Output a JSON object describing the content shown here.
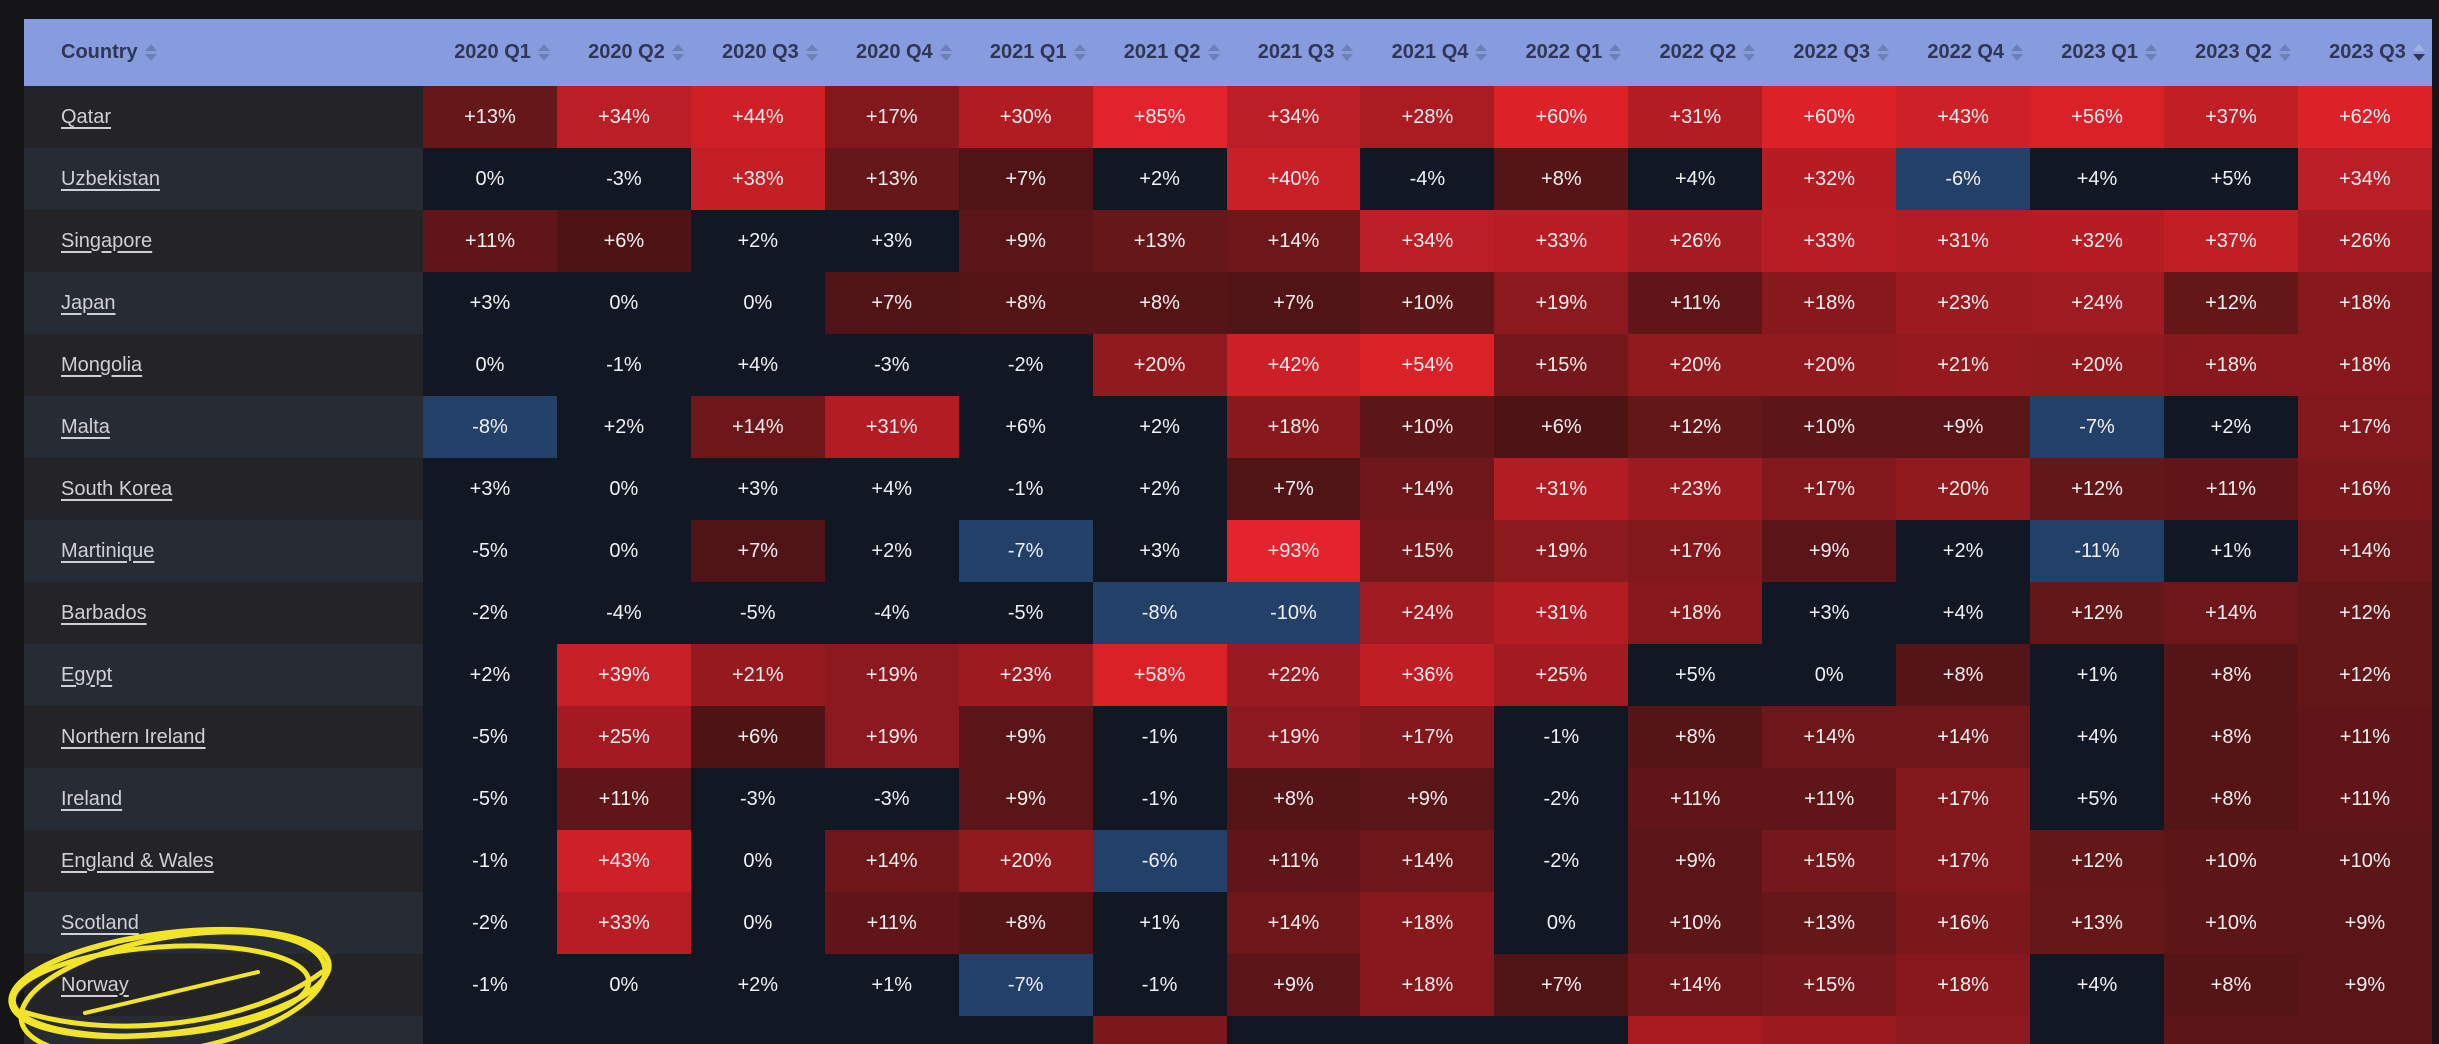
{
  "table": {
    "header": {
      "country_label": "Country",
      "quarters": [
        "2020 Q1",
        "2020 Q2",
        "2020 Q3",
        "2020 Q4",
        "2021 Q1",
        "2021 Q2",
        "2021 Q3",
        "2021 Q4",
        "2022 Q1",
        "2022 Q2",
        "2022 Q3",
        "2022 Q4",
        "2023 Q1",
        "2023 Q2",
        "2023 Q3"
      ]
    },
    "sorted_column": "2023 Q3",
    "sort_direction": "descending",
    "rows": [
      {
        "country": "Qatar",
        "values": [
          13,
          34,
          44,
          17,
          30,
          85,
          34,
          28,
          60,
          31,
          60,
          43,
          56,
          37,
          62
        ]
      },
      {
        "country": "Uzbekistan",
        "values": [
          0,
          -3,
          38,
          13,
          7,
          2,
          40,
          -4,
          8,
          4,
          32,
          -6,
          4,
          5,
          34
        ]
      },
      {
        "country": "Singapore",
        "values": [
          11,
          6,
          2,
          3,
          9,
          13,
          14,
          34,
          33,
          26,
          33,
          31,
          32,
          37,
          26
        ]
      },
      {
        "country": "Japan",
        "values": [
          3,
          0,
          0,
          7,
          8,
          8,
          7,
          10,
          19,
          11,
          18,
          23,
          24,
          12,
          18
        ]
      },
      {
        "country": "Mongolia",
        "values": [
          0,
          -1,
          4,
          -3,
          -2,
          20,
          42,
          54,
          15,
          20,
          20,
          21,
          20,
          18,
          18
        ]
      },
      {
        "country": "Malta",
        "values": [
          -8,
          2,
          14,
          31,
          6,
          2,
          18,
          10,
          6,
          12,
          10,
          9,
          -7,
          2,
          17
        ]
      },
      {
        "country": "South Korea",
        "values": [
          3,
          0,
          3,
          4,
          -1,
          2,
          7,
          14,
          31,
          23,
          17,
          20,
          12,
          11,
          16
        ]
      },
      {
        "country": "Martinique",
        "values": [
          -5,
          0,
          7,
          2,
          -7,
          3,
          93,
          15,
          19,
          17,
          9,
          2,
          -11,
          1,
          14
        ]
      },
      {
        "country": "Barbados",
        "values": [
          -2,
          -4,
          -5,
          -4,
          -5,
          -8,
          -10,
          24,
          31,
          18,
          3,
          4,
          12,
          14,
          12
        ]
      },
      {
        "country": "Egypt",
        "values": [
          2,
          39,
          21,
          19,
          23,
          58,
          22,
          36,
          25,
          5,
          0,
          8,
          1,
          8,
          12
        ]
      },
      {
        "country": "Northern Ireland",
        "values": [
          -5,
          25,
          6,
          19,
          9,
          -1,
          19,
          17,
          -1,
          8,
          14,
          14,
          4,
          8,
          11
        ]
      },
      {
        "country": "Ireland",
        "values": [
          -5,
          11,
          -3,
          -3,
          9,
          -1,
          8,
          9,
          -2,
          11,
          11,
          17,
          5,
          8,
          11
        ]
      },
      {
        "country": "England & Wales",
        "values": [
          -1,
          43,
          0,
          14,
          20,
          -6,
          11,
          14,
          -2,
          9,
          15,
          17,
          12,
          10,
          10
        ]
      },
      {
        "country": "Scotland",
        "values": [
          -2,
          33,
          0,
          11,
          8,
          1,
          14,
          18,
          0,
          10,
          13,
          16,
          13,
          10,
          9
        ]
      },
      {
        "country": "Norway",
        "values": [
          -1,
          0,
          2,
          1,
          -7,
          -1,
          9,
          18,
          7,
          14,
          15,
          18,
          4,
          8,
          9
        ]
      }
    ],
    "partial_row_colors": [
      "#121724",
      "#121724",
      "#121724",
      "#121724",
      "#121724",
      "#7a181c",
      "#121724",
      "#121724",
      "#121724",
      "#a81b21",
      "#9a1a1f",
      "#8c191d",
      "#121724",
      "#5c1517",
      "#5c1517"
    ]
  },
  "color_scale": {
    "negative_max": -6,
    "negative_color": "#224068",
    "positive_min": 6,
    "neutral_color": "#121724",
    "positive_stops": [
      [
        6,
        "#4d1315"
      ],
      [
        9,
        "#591517"
      ],
      [
        13,
        "#661719"
      ],
      [
        17,
        "#82181c"
      ],
      [
        21,
        "#951a1f"
      ],
      [
        25,
        "#a31b21"
      ],
      [
        30,
        "#b11c23"
      ],
      [
        35,
        "#bd1e24"
      ],
      [
        40,
        "#c91f26"
      ],
      [
        45,
        "#d22027"
      ],
      [
        55,
        "#da2128"
      ],
      [
        70,
        "#df2129"
      ],
      [
        93,
        "#e4232e"
      ]
    ]
  },
  "color_overrides": [
    {
      "row": 5,
      "col": 4,
      "color": "#121724"
    }
  ],
  "colors": {
    "ui": {
      "page-bg": "#151517",
      "header-bg": "#879bdf",
      "header-text": "#2e3854",
      "arrow": "#6c80b8",
      "arrow-active": "#2e3854",
      "arrow-active-up": "#9fb2e6",
      "row-odd": "#242426",
      "row-even": "#272b33",
      "cell-text": "#f1f0f2",
      "country-text": "#cfd0d4"
    }
  },
  "annotation": {
    "shape": "hand-drawn-ellipse",
    "around": "Norway",
    "color": "#f2e427"
  }
}
